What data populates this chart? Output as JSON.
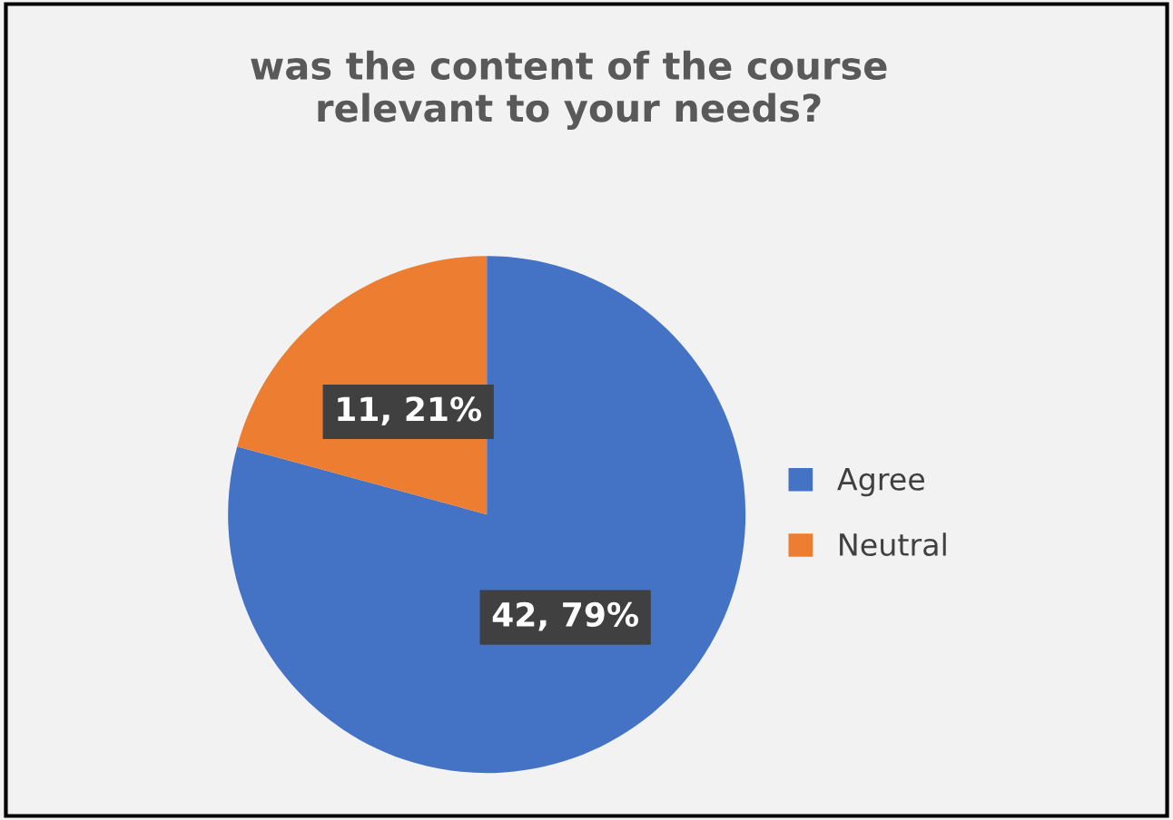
{
  "chart_data": {
    "type": "pie",
    "title": "was the content of the course\nrelevant to your needs?",
    "categories": [
      "Agree",
      "Neutral"
    ],
    "values": [
      42,
      11
    ],
    "colors": [
      "#4472c4",
      "#ed7d31"
    ],
    "value_labels": [
      "42, 79%",
      "11, 21%"
    ],
    "legend": "right"
  }
}
